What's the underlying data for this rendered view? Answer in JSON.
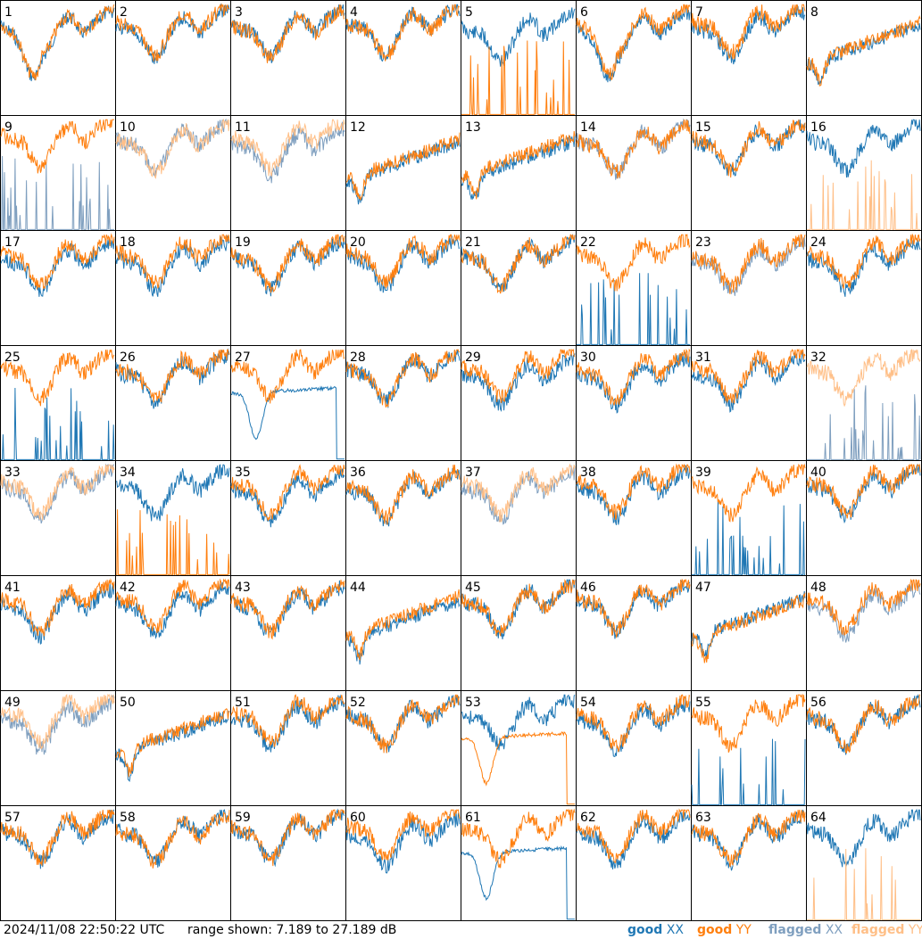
{
  "footer": {
    "timestamp": "2024/11/08 22:50:22 UTC",
    "range_text": "range shown: 7.189 to 27.189 dB"
  },
  "legend": [
    {
      "key": "good_xx",
      "word": "good",
      "pol": "XX",
      "color": "#1f77b4"
    },
    {
      "key": "good_yy",
      "word": "good",
      "pol": "YY",
      "color": "#ff7f0e"
    },
    {
      "key": "flagged_xx",
      "word": "flagged",
      "pol": "XX",
      "color": "#7f9fbf"
    },
    {
      "key": "flagged_yy",
      "word": "flagged",
      "pol": "YY",
      "color": "#ffbf87"
    }
  ],
  "chart_data": {
    "type": "line",
    "layout": "small-multiples",
    "y_range_db": [
      7.189,
      27.189
    ],
    "panels": [
      {
        "label": "1",
        "xx": "good",
        "yy": "good",
        "pattern": "dip-late"
      },
      {
        "label": "2",
        "xx": "good",
        "yy": "good",
        "pattern": "normal"
      },
      {
        "label": "3",
        "xx": "good",
        "yy": "good",
        "pattern": "normal"
      },
      {
        "label": "4",
        "xx": "good",
        "yy": "good",
        "pattern": "normal"
      },
      {
        "label": "5",
        "xx": "good",
        "yy": "good",
        "pattern": "yy-spikes"
      },
      {
        "label": "6",
        "xx": "good",
        "yy": "good",
        "pattern": "dip-late"
      },
      {
        "label": "7",
        "xx": "good",
        "yy": "good",
        "pattern": "normal"
      },
      {
        "label": "8",
        "xx": "good",
        "yy": "good",
        "pattern": "rise"
      },
      {
        "label": "9",
        "xx": "flagged",
        "yy": "good",
        "pattern": "xx-spikes"
      },
      {
        "label": "10",
        "xx": "flagged",
        "yy": "flagged",
        "pattern": "normal"
      },
      {
        "label": "11",
        "xx": "flagged",
        "yy": "flagged",
        "pattern": "normal"
      },
      {
        "label": "12",
        "xx": "good",
        "yy": "good",
        "pattern": "rise"
      },
      {
        "label": "13",
        "xx": "good",
        "yy": "good",
        "pattern": "rise"
      },
      {
        "label": "14",
        "xx": "flagged",
        "yy": "good",
        "pattern": "normal"
      },
      {
        "label": "15",
        "xx": "good",
        "yy": "good",
        "pattern": "normal"
      },
      {
        "label": "16",
        "xx": "good",
        "yy": "flagged",
        "pattern": "yy-spikes"
      },
      {
        "label": "17",
        "xx": "good",
        "yy": "good",
        "pattern": "normal"
      },
      {
        "label": "18",
        "xx": "good",
        "yy": "good",
        "pattern": "normal"
      },
      {
        "label": "19",
        "xx": "good",
        "yy": "good",
        "pattern": "normal"
      },
      {
        "label": "20",
        "xx": "good",
        "yy": "good",
        "pattern": "normal"
      },
      {
        "label": "21",
        "xx": "good",
        "yy": "good",
        "pattern": "normal"
      },
      {
        "label": "22",
        "xx": "good",
        "yy": "good",
        "pattern": "xx-spikes"
      },
      {
        "label": "23",
        "xx": "flagged",
        "yy": "good",
        "pattern": "normal"
      },
      {
        "label": "24",
        "xx": "good",
        "yy": "good",
        "pattern": "normal"
      },
      {
        "label": "25",
        "xx": "good",
        "yy": "good",
        "pattern": "xx-spikes"
      },
      {
        "label": "26",
        "xx": "good",
        "yy": "good",
        "pattern": "normal"
      },
      {
        "label": "27",
        "xx": "good",
        "yy": "good",
        "pattern": "xx-plateau"
      },
      {
        "label": "28",
        "xx": "good",
        "yy": "good",
        "pattern": "normal"
      },
      {
        "label": "29",
        "xx": "good",
        "yy": "good",
        "pattern": "normal"
      },
      {
        "label": "30",
        "xx": "good",
        "yy": "good",
        "pattern": "normal"
      },
      {
        "label": "31",
        "xx": "good",
        "yy": "good",
        "pattern": "normal"
      },
      {
        "label": "32",
        "xx": "flagged",
        "yy": "flagged",
        "pattern": "xx-spikes"
      },
      {
        "label": "33",
        "xx": "flagged",
        "yy": "flagged",
        "pattern": "normal"
      },
      {
        "label": "34",
        "xx": "good",
        "yy": "good",
        "pattern": "yy-spikes"
      },
      {
        "label": "35",
        "xx": "good",
        "yy": "good",
        "pattern": "normal"
      },
      {
        "label": "36",
        "xx": "good",
        "yy": "good",
        "pattern": "normal"
      },
      {
        "label": "37",
        "xx": "flagged",
        "yy": "flagged",
        "pattern": "normal"
      },
      {
        "label": "38",
        "xx": "good",
        "yy": "good",
        "pattern": "normal"
      },
      {
        "label": "39",
        "xx": "good",
        "yy": "good",
        "pattern": "xx-spikes"
      },
      {
        "label": "40",
        "xx": "good",
        "yy": "good",
        "pattern": "normal"
      },
      {
        "label": "41",
        "xx": "good",
        "yy": "good",
        "pattern": "normal"
      },
      {
        "label": "42",
        "xx": "good",
        "yy": "good",
        "pattern": "normal"
      },
      {
        "label": "43",
        "xx": "good",
        "yy": "good",
        "pattern": "normal"
      },
      {
        "label": "44",
        "xx": "good",
        "yy": "good",
        "pattern": "rise"
      },
      {
        "label": "45",
        "xx": "good",
        "yy": "good",
        "pattern": "normal"
      },
      {
        "label": "46",
        "xx": "good",
        "yy": "good",
        "pattern": "normal"
      },
      {
        "label": "47",
        "xx": "good",
        "yy": "good",
        "pattern": "rise"
      },
      {
        "label": "48",
        "xx": "flagged",
        "yy": "good",
        "pattern": "normal"
      },
      {
        "label": "49",
        "xx": "flagged",
        "yy": "flagged",
        "pattern": "normal"
      },
      {
        "label": "50",
        "xx": "good",
        "yy": "good",
        "pattern": "rise"
      },
      {
        "label": "51",
        "xx": "good",
        "yy": "good",
        "pattern": "normal"
      },
      {
        "label": "52",
        "xx": "good",
        "yy": "good",
        "pattern": "normal"
      },
      {
        "label": "53",
        "xx": "good",
        "yy": "good",
        "pattern": "yy-plateau"
      },
      {
        "label": "54",
        "xx": "good",
        "yy": "good",
        "pattern": "normal"
      },
      {
        "label": "55",
        "xx": "good",
        "yy": "good",
        "pattern": "xx-spikes"
      },
      {
        "label": "56",
        "xx": "good",
        "yy": "good",
        "pattern": "normal"
      },
      {
        "label": "57",
        "xx": "good",
        "yy": "good",
        "pattern": "normal"
      },
      {
        "label": "58",
        "xx": "good",
        "yy": "good",
        "pattern": "normal"
      },
      {
        "label": "59",
        "xx": "good",
        "yy": "good",
        "pattern": "normal"
      },
      {
        "label": "60",
        "xx": "good",
        "yy": "good",
        "pattern": "normal"
      },
      {
        "label": "61",
        "xx": "good",
        "yy": "good",
        "pattern": "xx-plateau"
      },
      {
        "label": "62",
        "xx": "good",
        "yy": "good",
        "pattern": "normal"
      },
      {
        "label": "63",
        "xx": "good",
        "yy": "good",
        "pattern": "normal"
      },
      {
        "label": "64",
        "xx": "good",
        "yy": "flagged",
        "pattern": "yy-spikes"
      }
    ]
  }
}
